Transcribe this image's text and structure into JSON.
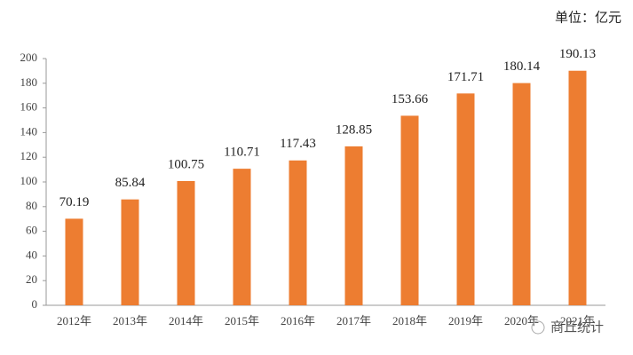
{
  "chart_data": {
    "type": "bar",
    "unit": "单位：亿元",
    "categories": [
      "2012年",
      "2013年",
      "2014年",
      "2015年",
      "2016年",
      "2017年",
      "2018年",
      "2019年",
      "2020年",
      "2021年"
    ],
    "values": [
      70.19,
      85.84,
      100.75,
      110.71,
      117.43,
      128.85,
      153.66,
      171.71,
      180.14,
      190.13
    ],
    "color": "#ed7d31",
    "ylim": [
      0,
      200
    ],
    "yticks": [
      0,
      20,
      40,
      60,
      80,
      100,
      120,
      140,
      160,
      180,
      200
    ],
    "watermark": "商丘统计"
  }
}
